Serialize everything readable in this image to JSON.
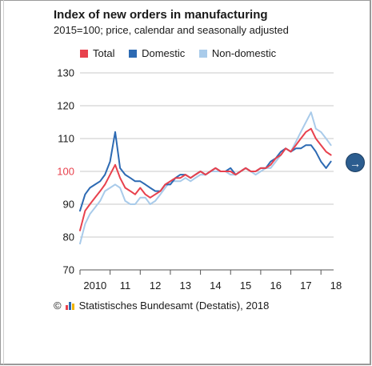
{
  "chart_data": {
    "type": "line",
    "title": "Index of new orders in manufacturing",
    "subtitle": "2015=100; price, calendar and seasonally adjusted",
    "xlabel": "",
    "ylabel": "",
    "ylim": [
      70,
      130
    ],
    "yticks": [
      70,
      80,
      90,
      100,
      110,
      120,
      130
    ],
    "x_ticks": [
      {
        "label": "2010",
        "year": 2010.5
      },
      {
        "label": "11",
        "year": 2011.5
      },
      {
        "label": "12",
        "year": 2012.5
      },
      {
        "label": "13",
        "year": 2013.5
      },
      {
        "label": "14",
        "year": 2014.5
      },
      {
        "label": "15",
        "year": 2015.5
      },
      {
        "label": "16",
        "year": 2016.5
      },
      {
        "label": "17",
        "year": 2017.5
      },
      {
        "label": "18",
        "year": 2018.5
      }
    ],
    "highlight_y": 100,
    "grid": true,
    "legend_position": "top",
    "colors": {
      "Total": "#e8414d",
      "Domestic": "#2d6ab3",
      "Non-domestic": "#a9cbea",
      "highlight_tick": "#e8414d"
    },
    "x": [
      2010.0,
      2010.17,
      2010.33,
      2010.5,
      2010.67,
      2010.83,
      2011.0,
      2011.17,
      2011.33,
      2011.5,
      2011.67,
      2011.83,
      2012.0,
      2012.17,
      2012.33,
      2012.5,
      2012.67,
      2012.83,
      2013.0,
      2013.17,
      2013.33,
      2013.5,
      2013.67,
      2013.83,
      2014.0,
      2014.17,
      2014.33,
      2014.5,
      2014.67,
      2014.83,
      2015.0,
      2015.17,
      2015.33,
      2015.5,
      2015.67,
      2015.83,
      2016.0,
      2016.17,
      2016.33,
      2016.5,
      2016.67,
      2016.83,
      2017.0,
      2017.17,
      2017.33,
      2017.5,
      2017.67,
      2017.83,
      2018.0,
      2018.17,
      2018.33
    ],
    "series": [
      {
        "name": "Total",
        "values": [
          82,
          88,
          90,
          92,
          94,
          96,
          99,
          102,
          98,
          95,
          94,
          93,
          95,
          93,
          92,
          93,
          94,
          96,
          97,
          98,
          98,
          99,
          98,
          99,
          100,
          99,
          100,
          101,
          100,
          100,
          100,
          99,
          100,
          101,
          100,
          100,
          101,
          101,
          102,
          104,
          105,
          107,
          106,
          108,
          110,
          112,
          113,
          110,
          108,
          106,
          105
        ]
      },
      {
        "name": "Domestic",
        "values": [
          88,
          93,
          95,
          96,
          97,
          99,
          103,
          112,
          101,
          99,
          98,
          97,
          97,
          96,
          95,
          94,
          94,
          96,
          96,
          98,
          99,
          99,
          98,
          99,
          100,
          99,
          100,
          101,
          100,
          100,
          101,
          99,
          100,
          101,
          100,
          100,
          101,
          101,
          103,
          104,
          106,
          107,
          106,
          107,
          107,
          108,
          108,
          106,
          103,
          101,
          103
        ]
      },
      {
        "name": "Non-domestic",
        "values": [
          78,
          84,
          87,
          89,
          91,
          94,
          95,
          96,
          95,
          91,
          90,
          90,
          92,
          92,
          90,
          91,
          93,
          95,
          97,
          97,
          97,
          98,
          97,
          98,
          99,
          99,
          100,
          100,
          100,
          100,
          99,
          99,
          100,
          101,
          100,
          99,
          100,
          101,
          101,
          103,
          105,
          107,
          106,
          109,
          112,
          115,
          118,
          113,
          112,
          110,
          108
        ]
      }
    ]
  },
  "source": {
    "text": "Statistisches Bundesamt (Destatis), 2018",
    "copyright": "©"
  },
  "nav": {
    "next_arrow": "→"
  }
}
